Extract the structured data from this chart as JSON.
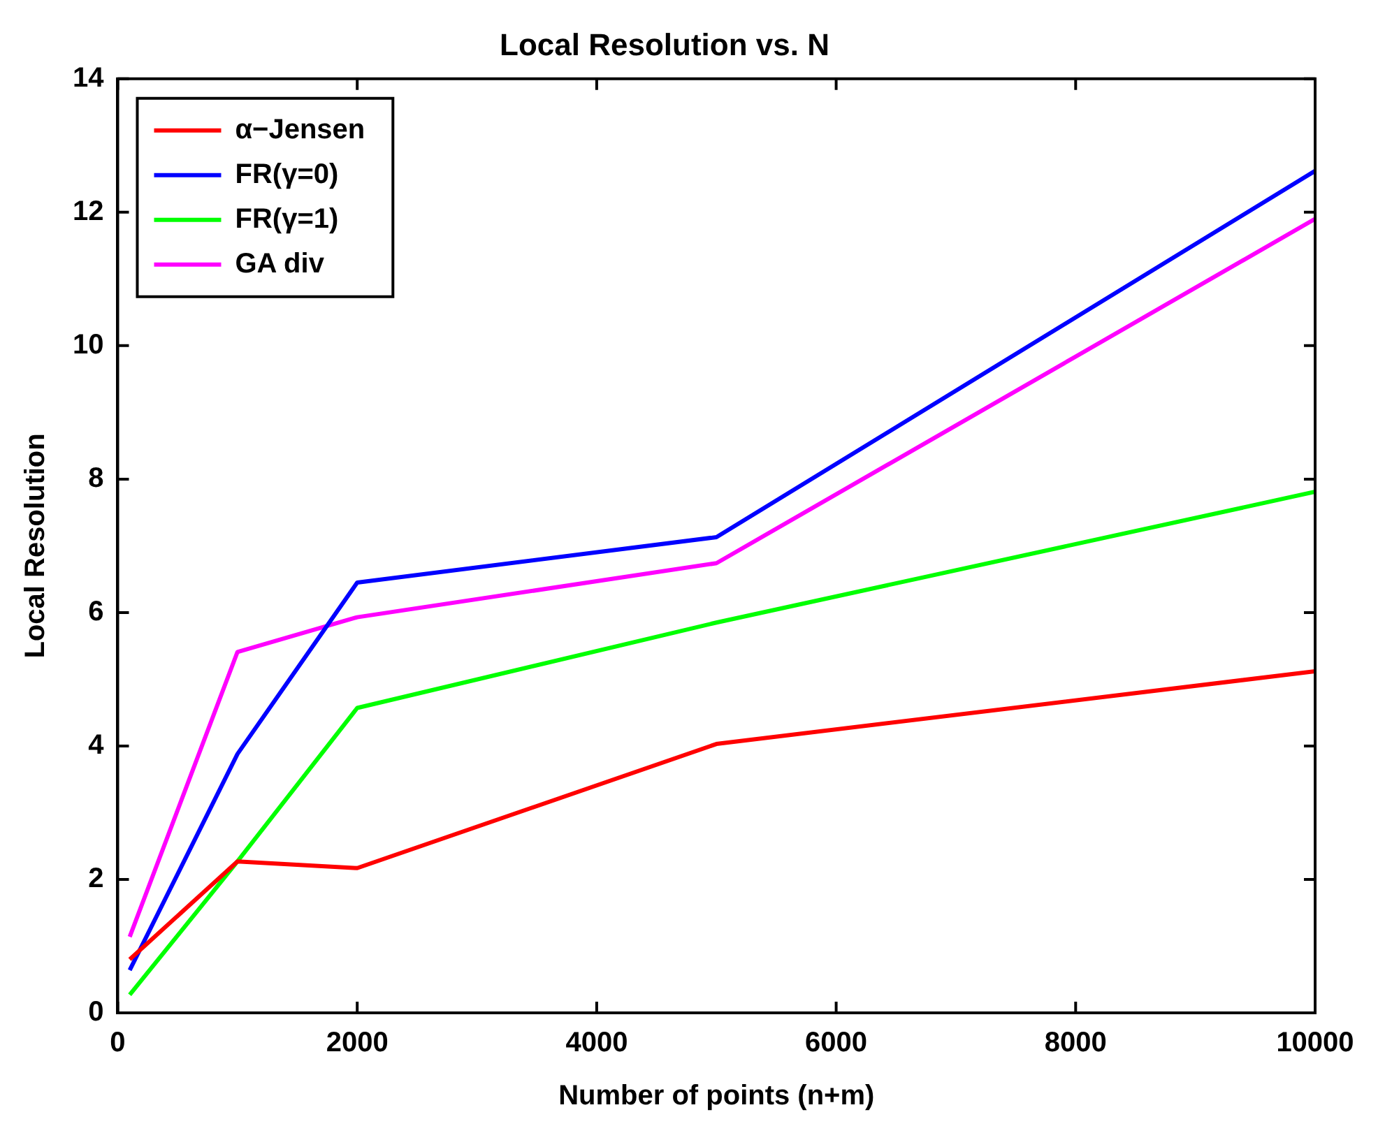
{
  "chart_data": {
    "type": "line",
    "title": "Local Resolution vs. N",
    "xlabel": "Number of points (n+m)",
    "ylabel": "Local Resolution",
    "x": [
      100,
      1000,
      2000,
      5000,
      10000
    ],
    "series": [
      {
        "name": "α−Jensen",
        "color": "#ff0000",
        "values": [
          0.8,
          2.27,
          2.17,
          4.03,
          5.12
        ]
      },
      {
        "name": "FR(γ=0)",
        "color": "#0000ff",
        "values": [
          0.64,
          3.88,
          6.45,
          7.13,
          12.62
        ]
      },
      {
        "name": "FR(γ=1)",
        "color": "#00ff00",
        "values": [
          0.27,
          2.27,
          4.57,
          5.85,
          7.81
        ]
      },
      {
        "name": "GA div",
        "color": "#ff00ff",
        "values": [
          1.14,
          5.41,
          5.93,
          6.74,
          11.9
        ]
      }
    ],
    "xlim": [
      0,
      10000
    ],
    "xticks": [
      0,
      2000,
      4000,
      6000,
      8000,
      10000
    ],
    "ylim": [
      0,
      14
    ],
    "yticks": [
      0,
      2,
      4,
      6,
      8,
      10,
      12,
      14
    ],
    "grid": false,
    "legend": "top left",
    "marker": "none",
    "line_style": "solid"
  }
}
